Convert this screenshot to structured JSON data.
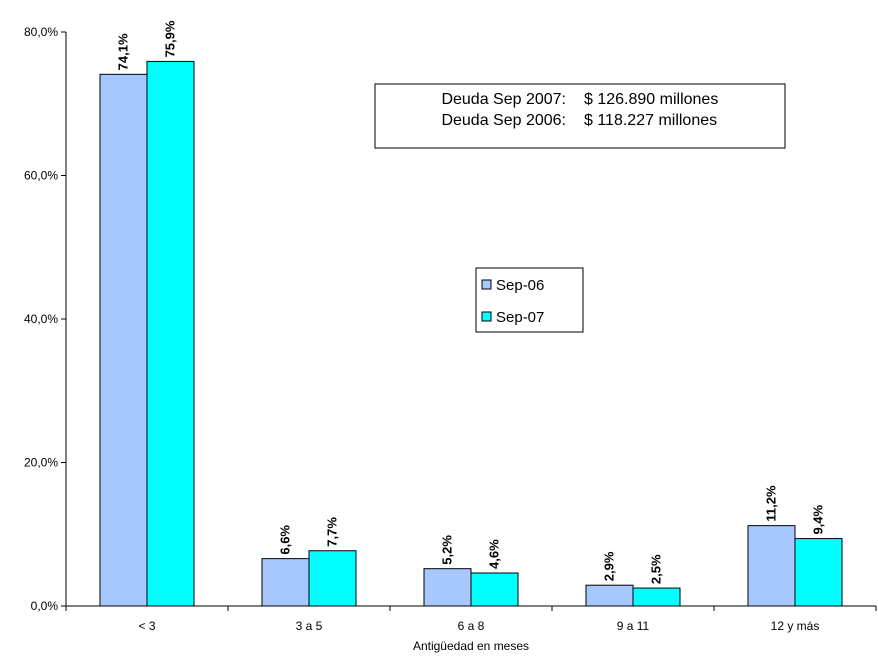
{
  "chart_data": {
    "type": "bar",
    "categories": [
      "< 3",
      "3 a 5",
      "6 a 8",
      "9 a 11",
      "12 y más"
    ],
    "series": [
      {
        "name": "Sep-06",
        "values": [
          74.1,
          6.6,
          5.2,
          2.9,
          11.2
        ],
        "labels": [
          "74,1%",
          "6,6%",
          "5,2%",
          "2,9%",
          "11,2%"
        ],
        "color": "#a6c8ff"
      },
      {
        "name": "Sep-07",
        "values": [
          75.9,
          7.7,
          4.6,
          2.5,
          9.4
        ],
        "labels": [
          "75,9%",
          "7,7%",
          "4,6%",
          "2,5%",
          "9,4%"
        ],
        "color": "#00ffff"
      }
    ],
    "xlabel": "Antigüedad en meses",
    "ylabel": "",
    "ylim": [
      0,
      80
    ],
    "yticks": [
      0,
      20,
      40,
      60,
      80
    ],
    "ytick_labels": [
      "0,0%",
      "20,0%",
      "40,0%",
      "60,0%",
      "80,0%"
    ],
    "grid": false,
    "legend_position": "center-right",
    "annotation_box": {
      "rows": [
        {
          "label": "Deuda Sep 2007:",
          "value": "$ 126.890 millones"
        },
        {
          "label": "Deuda Sep 2006:",
          "value": "$ 118.227 millones"
        }
      ]
    }
  }
}
